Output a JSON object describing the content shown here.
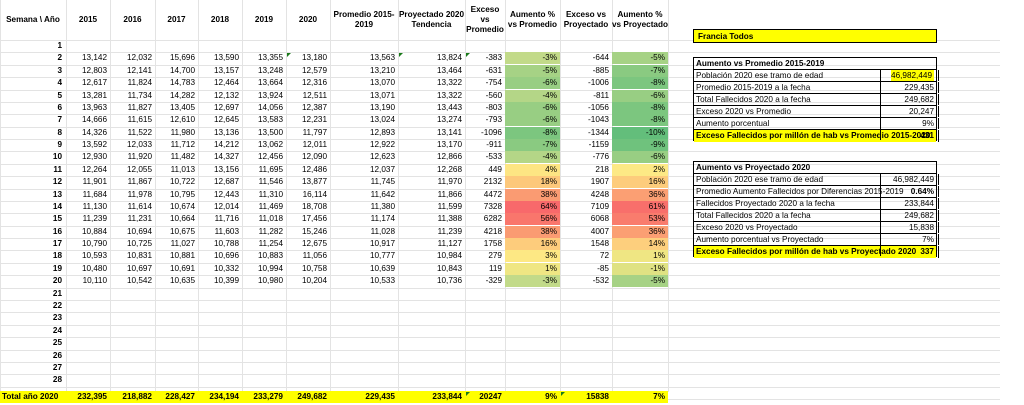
{
  "header": {
    "corner": "Semana \\ Año",
    "columns": [
      "2015",
      "2016",
      "2017",
      "2018",
      "2019",
      "2020",
      "Promedio 2015-2019",
      "Proyectado 2020 Tendencia",
      "Exceso vs Promedio",
      "Aumento % vs Promedio",
      "Exceso vs Proyectado",
      "Aumento % vs Proyectado"
    ]
  },
  "rows": [
    {
      "w": "1",
      "v": [
        "",
        "",
        "",
        "",
        "",
        "",
        "",
        "",
        "",
        "",
        "",
        ""
      ]
    },
    {
      "w": "2",
      "v": [
        "13,142",
        "12,032",
        "15,696",
        "13,590",
        "13,355",
        "13,180",
        "13,563",
        "13,824",
        "-383",
        "-3%",
        "-644",
        "-5%"
      ]
    },
    {
      "w": "3",
      "v": [
        "12,803",
        "12,141",
        "14,700",
        "13,157",
        "13,248",
        "12,579",
        "13,210",
        "13,464",
        "-631",
        "-5%",
        "-885",
        "-7%"
      ]
    },
    {
      "w": "4",
      "v": [
        "12,617",
        "11,824",
        "14,783",
        "12,464",
        "13,664",
        "12,316",
        "13,070",
        "13,322",
        "-754",
        "-6%",
        "-1006",
        "-8%"
      ]
    },
    {
      "w": "5",
      "v": [
        "13,281",
        "11,734",
        "14,282",
        "12,132",
        "13,924",
        "12,511",
        "13,071",
        "13,322",
        "-560",
        "-4%",
        "-811",
        "-6%"
      ]
    },
    {
      "w": "6",
      "v": [
        "13,963",
        "11,827",
        "13,405",
        "12,697",
        "14,056",
        "12,387",
        "13,190",
        "13,443",
        "-803",
        "-6%",
        "-1056",
        "-8%"
      ]
    },
    {
      "w": "7",
      "v": [
        "14,666",
        "11,615",
        "12,610",
        "12,645",
        "13,583",
        "12,231",
        "13,024",
        "13,274",
        "-793",
        "-6%",
        "-1043",
        "-8%"
      ]
    },
    {
      "w": "8",
      "v": [
        "14,326",
        "11,522",
        "11,980",
        "13,136",
        "13,500",
        "11,797",
        "12,893",
        "13,141",
        "-1096",
        "-8%",
        "-1344",
        "-10%"
      ]
    },
    {
      "w": "9",
      "v": [
        "13,592",
        "12,033",
        "11,712",
        "14,212",
        "13,062",
        "12,011",
        "12,922",
        "13,170",
        "-911",
        "-7%",
        "-1159",
        "-9%"
      ]
    },
    {
      "w": "10",
      "v": [
        "12,930",
        "11,920",
        "11,482",
        "14,327",
        "12,456",
        "12,090",
        "12,623",
        "12,866",
        "-533",
        "-4%",
        "-776",
        "-6%"
      ]
    },
    {
      "w": "11",
      "v": [
        "12,264",
        "12,055",
        "11,013",
        "13,156",
        "11,695",
        "12,486",
        "12,037",
        "12,268",
        "449",
        "4%",
        "218",
        "2%"
      ]
    },
    {
      "w": "12",
      "v": [
        "11,901",
        "11,867",
        "10,722",
        "12,687",
        "11,546",
        "13,877",
        "11,745",
        "11,970",
        "2132",
        "18%",
        "1907",
        "16%"
      ]
    },
    {
      "w": "13",
      "v": [
        "11,684",
        "11,978",
        "10,795",
        "12,443",
        "11,310",
        "16,114",
        "11,642",
        "11,866",
        "4472",
        "38%",
        "4248",
        "36%"
      ]
    },
    {
      "w": "14",
      "v": [
        "11,130",
        "11,614",
        "10,674",
        "12,014",
        "11,469",
        "18,708",
        "11,380",
        "11,599",
        "7328",
        "64%",
        "7109",
        "61%"
      ]
    },
    {
      "w": "15",
      "v": [
        "11,239",
        "11,231",
        "10,664",
        "11,716",
        "11,018",
        "17,456",
        "11,174",
        "11,388",
        "6282",
        "56%",
        "6068",
        "53%"
      ]
    },
    {
      "w": "16",
      "v": [
        "10,884",
        "10,694",
        "10,675",
        "11,603",
        "11,282",
        "15,246",
        "11,028",
        "11,239",
        "4218",
        "38%",
        "4007",
        "36%"
      ]
    },
    {
      "w": "17",
      "v": [
        "10,790",
        "10,725",
        "11,027",
        "10,788",
        "11,254",
        "12,675",
        "10,917",
        "11,127",
        "1758",
        "16%",
        "1548",
        "14%"
      ]
    },
    {
      "w": "18",
      "v": [
        "10,593",
        "10,831",
        "10,881",
        "10,696",
        "10,883",
        "11,056",
        "10,777",
        "10,984",
        "279",
        "3%",
        "72",
        "1%"
      ]
    },
    {
      "w": "19",
      "v": [
        "10,480",
        "10,697",
        "10,691",
        "10,332",
        "10,994",
        "10,758",
        "10,639",
        "10,843",
        "119",
        "1%",
        "-85",
        "-1%"
      ]
    },
    {
      "w": "20",
      "v": [
        "10,110",
        "10,542",
        "10,635",
        "10,399",
        "10,980",
        "10,204",
        "10,533",
        "10,736",
        "-329",
        "-3%",
        "-532",
        "-5%"
      ]
    },
    {
      "w": "21",
      "v": [
        "",
        "",
        "",
        "",
        "",
        "",
        "",
        "",
        "",
        "",
        "",
        ""
      ]
    },
    {
      "w": "22",
      "v": [
        "",
        "",
        "",
        "",
        "",
        "",
        "",
        "",
        "",
        "",
        "",
        ""
      ]
    },
    {
      "w": "23",
      "v": [
        "",
        "",
        "",
        "",
        "",
        "",
        "",
        "",
        "",
        "",
        "",
        ""
      ]
    },
    {
      "w": "24",
      "v": [
        "",
        "",
        "",
        "",
        "",
        "",
        "",
        "",
        "",
        "",
        "",
        ""
      ]
    },
    {
      "w": "25",
      "v": [
        "",
        "",
        "",
        "",
        "",
        "",
        "",
        "",
        "",
        "",
        "",
        ""
      ]
    },
    {
      "w": "26",
      "v": [
        "",
        "",
        "",
        "",
        "",
        "",
        "",
        "",
        "",
        "",
        "",
        ""
      ]
    },
    {
      "w": "27",
      "v": [
        "",
        "",
        "",
        "",
        "",
        "",
        "",
        "",
        "",
        "",
        "",
        ""
      ]
    },
    {
      "w": "28",
      "v": [
        "",
        "",
        "",
        "",
        "",
        "",
        "",
        "",
        "",
        "",
        "",
        ""
      ]
    }
  ],
  "pct_colors": {
    "-10%": "#63be7b",
    "-9%": "#6fc27d",
    "-8%": "#7cc67f",
    "-7%": "#8aca81",
    "-6%": "#98ce83",
    "-5%": "#a6d285",
    "-4%": "#b4d687",
    "-3%": "#c2da89",
    "-1%": "#dfe283",
    "1%": "#efe683",
    "2%": "#fde985",
    "3%": "#fde884",
    "4%": "#fde583",
    "14%": "#fdcf7d",
    "16%": "#fdcc7c",
    "18%": "#fdc87b",
    "36%": "#fb9f73",
    "38%": "#fa9b72",
    "53%": "#f97c6d",
    "56%": "#f9766c",
    "61%": "#f86f6b",
    "64%": "#f8696b"
  },
  "totals": {
    "label": "Total año 2020",
    "values": [
      "232,395",
      "218,882",
      "228,427",
      "234,194",
      "233,279",
      "249,682",
      "229,435",
      "233,844",
      "20247",
      "9%",
      "15838",
      "7%"
    ]
  },
  "title_box": {
    "text": "Francia Todos"
  },
  "panel1": {
    "title": "Aumento vs Promedio 2015-2019",
    "rows": [
      {
        "label": "Población 2020 ese tramo de edad",
        "value": "46,982,449"
      },
      {
        "label": "Promedio 2015-2019 a la fecha",
        "value": "229,435"
      },
      {
        "label": "Total Fallecidos 2020 a la fecha",
        "value": "249,682"
      },
      {
        "label": "Exceso 2020 vs Promedio",
        "value": "20,247"
      },
      {
        "label": "Aumento porcentual",
        "value": "9%"
      },
      {
        "label": "Exceso Fallecidos por millón de hab vs Promedio 2015-2020",
        "value": "431"
      }
    ]
  },
  "panel2": {
    "title": "Aumento vs Proyectado 2020",
    "rows": [
      {
        "label": "Población 2020 ese tramo de edad",
        "value": "46,982,449"
      },
      {
        "label": "Promedio Aumento Fallecidos por Diferencias 2015-2019",
        "value": "0.64%"
      },
      {
        "label": "Fallecidos Proyectado 2020 a la fecha",
        "value": "233,844"
      },
      {
        "label": "Total Fallecidos 2020 a la fecha",
        "value": "249,682"
      },
      {
        "label": "Exceso 2020 vs Proyectado",
        "value": "15,838"
      },
      {
        "label": "Aumento porcentual vs Proyectado",
        "value": "7%"
      },
      {
        "label": "Exceso Fallecidos por millón de hab vs Proyectado 2020",
        "value": "337"
      }
    ]
  },
  "colors": {
    "highlight": "#ffff00",
    "indicator": "#1a7a1a"
  }
}
